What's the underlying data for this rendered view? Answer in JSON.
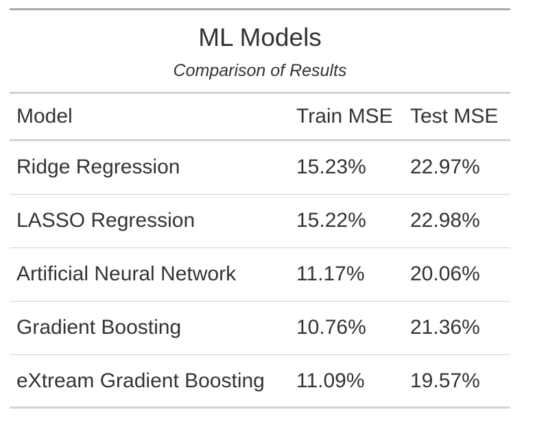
{
  "chart_data": {
    "type": "table",
    "title": "ML Models",
    "subtitle": "Comparison of Results",
    "columns": [
      "Model",
      "Train MSE",
      "Test MSE"
    ],
    "rows": [
      [
        "Ridge Regression",
        "15.23%",
        "22.97%"
      ],
      [
        "LASSO Regression",
        "15.22%",
        "22.98%"
      ],
      [
        "Artificial Neural Network",
        "11.17%",
        "20.06%"
      ],
      [
        "Gradient Boosting",
        "10.76%",
        "21.36%"
      ],
      [
        "eXtream Gradient Boosting",
        "11.09%",
        "19.57%"
      ]
    ]
  }
}
